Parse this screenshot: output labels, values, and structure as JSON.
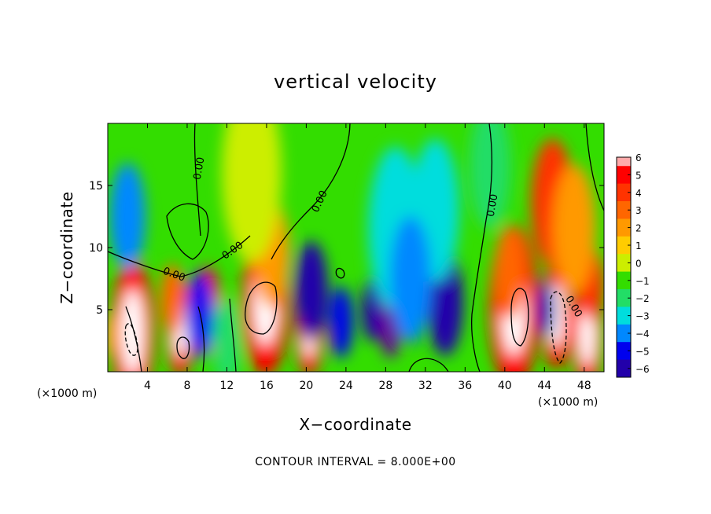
{
  "chart_data": {
    "type": "heatmap",
    "title": "vertical velocity",
    "xlabel": "X−coordinate",
    "ylabel": "Z−coordinate",
    "x_unit": "(×1000 m)",
    "y_unit": "(×1000 m)",
    "xlim": [
      0,
      50
    ],
    "ylim": [
      0,
      20
    ],
    "x_ticks": [
      4,
      8,
      12,
      16,
      20,
      24,
      28,
      32,
      36,
      40,
      44,
      48
    ],
    "y_ticks": [
      5,
      10,
      15
    ],
    "x_tick_labels": [
      "4",
      "8",
      "12",
      "16",
      "20",
      "24",
      "28",
      "32",
      "36",
      "40",
      "44",
      "48"
    ],
    "y_tick_labels": [
      "5",
      "10",
      "15"
    ],
    "colorbar": {
      "levels": [
        6,
        5,
        4,
        3,
        2,
        1,
        0,
        -1,
        -2,
        -3,
        -4,
        -5,
        -6
      ],
      "labels": [
        "6",
        "5",
        "4",
        "3",
        "2",
        "1",
        "0",
        "−1",
        "−2",
        "−3",
        "−4",
        "−5",
        "−6"
      ],
      "colors": [
        "#ff0000",
        "#ff3300",
        "#ff6600",
        "#ff9900",
        "#ffcc00",
        "#ccee00",
        "#33dd00",
        "#22dd66",
        "#00dddd",
        "#0088ff",
        "#0000ee",
        "#2200aa",
        "#660099"
      ],
      "top_color": "#ffaaaa"
    },
    "contour_labels": [
      "0.00",
      "0.00",
      "0.00",
      "0.00",
      "0.00",
      "0.00"
    ],
    "contour_interval_text": "CONTOUR INTERVAL = 8.000E+00",
    "cells": [
      {
        "x": 2.5,
        "z": 3.2,
        "w": 3.0,
        "v": 6
      },
      {
        "x": 0.4,
        "z": 3.0,
        "w": 1.2,
        "v": 3
      },
      {
        "x": 7.3,
        "z": 3.5,
        "w": 2.0,
        "v": 6
      },
      {
        "x": 6.5,
        "z": 5.8,
        "w": 2.0,
        "v": 4
      },
      {
        "x": 10.1,
        "z": 5.0,
        "w": 1.8,
        "v": 6
      },
      {
        "x": 9.3,
        "z": 4.6,
        "w": 2.4,
        "v": -4
      },
      {
        "x": 15.9,
        "z": 5.8,
        "w": 3.2,
        "v": 6
      },
      {
        "x": 16.5,
        "z": 9.5,
        "w": 3.0,
        "v": 3
      },
      {
        "x": 20.3,
        "z": 3.5,
        "w": 2.0,
        "v": 6
      },
      {
        "x": 20.5,
        "z": 6.5,
        "w": 2.8,
        "v": -5
      },
      {
        "x": 23.5,
        "z": 4.0,
        "w": 2.0,
        "v": -4
      },
      {
        "x": 26.7,
        "z": 5.0,
        "w": 1.8,
        "v": -5
      },
      {
        "x": 28.5,
        "z": 4.2,
        "w": 1.6,
        "v": -6
      },
      {
        "x": 30.8,
        "z": 4.5,
        "w": 1.6,
        "v": -5
      },
      {
        "x": 34.0,
        "z": 5.6,
        "w": 3.0,
        "v": -5
      },
      {
        "x": 29.0,
        "z": 11.5,
        "w": 4.6,
        "v": -2
      },
      {
        "x": 33.0,
        "z": 13.0,
        "w": 4.0,
        "v": -2
      },
      {
        "x": 30.5,
        "z": 7.5,
        "w": 3.5,
        "v": -3
      },
      {
        "x": 40.9,
        "z": 5.2,
        "w": 3.4,
        "v": 6
      },
      {
        "x": 40.5,
        "z": 8.0,
        "w": 2.6,
        "v": 4
      },
      {
        "x": 45.2,
        "z": 4.5,
        "w": 2.2,
        "v": 6
      },
      {
        "x": 44.1,
        "z": 5.0,
        "w": 1.6,
        "v": -5
      },
      {
        "x": 48.3,
        "z": 3.0,
        "w": 2.2,
        "v": 6
      },
      {
        "x": 48.8,
        "z": 7.0,
        "w": 2.0,
        "v": 5
      },
      {
        "x": 44.8,
        "z": 13.6,
        "w": 3.6,
        "v": 5
      },
      {
        "x": 47.0,
        "z": 11.5,
        "w": 3.6,
        "v": 3
      },
      {
        "x": 2.0,
        "z": 12.5,
        "w": 3.0,
        "v": -3
      },
      {
        "x": 14.5,
        "z": 16.0,
        "w": 5.0,
        "v": 1
      },
      {
        "x": 12.0,
        "z": 2.5,
        "w": 2.5,
        "v": -1
      },
      {
        "x": 38.5,
        "z": 16.5,
        "w": 3.5,
        "v": -1
      }
    ]
  }
}
